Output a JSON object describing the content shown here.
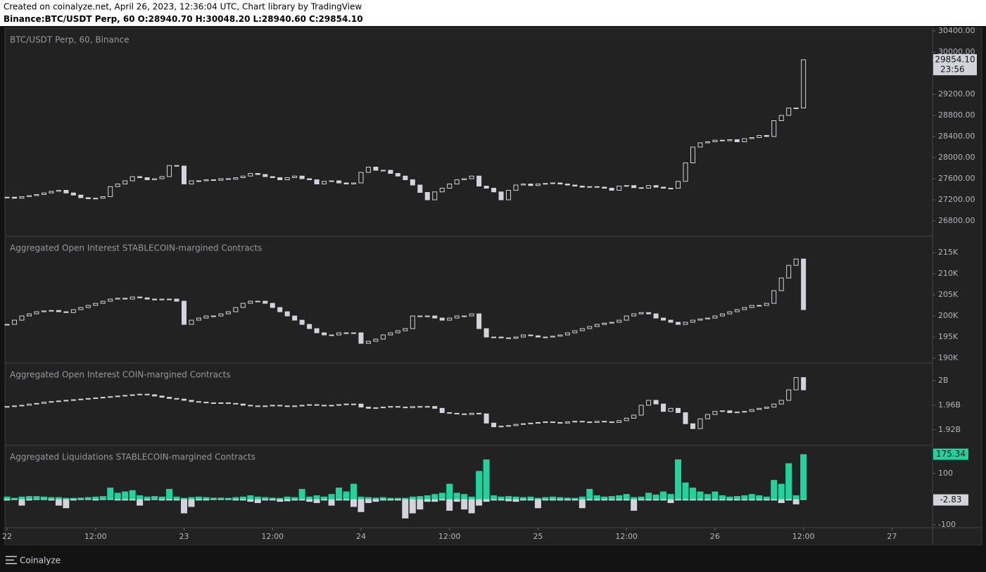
{
  "header": {
    "created": "Created on coinalyze.net, April 26, 2023, 12:36:04 UTC, Chart library by TradingView",
    "symbol": "Binance:BTC/USDT Perp, 60",
    "ohlc": [
      "O:28940.70",
      "H:30048.20",
      "L:28940.60",
      "C:29854.10"
    ]
  },
  "time_axis": {
    "xlim": [
      -0.29,
      125.5
    ],
    "xticks": [
      {
        "value": 0,
        "label": "22"
      },
      {
        "value": 12,
        "label": "12:00"
      },
      {
        "value": 24,
        "label": "23"
      },
      {
        "value": 36,
        "label": "12:00"
      },
      {
        "value": 48,
        "label": "24"
      },
      {
        "value": 60,
        "label": "12:00"
      },
      {
        "value": 72,
        "label": "25"
      },
      {
        "value": 84,
        "label": "12:00"
      },
      {
        "value": 96,
        "label": "26"
      },
      {
        "value": 108,
        "label": "12:00"
      },
      {
        "value": 120,
        "label": "27"
      }
    ]
  },
  "chart_data": [
    {
      "type": "candlestick",
      "title": "BTC/USDT Perp, 60, Binance",
      "color": "#d1d4dc",
      "closes": [
        27250,
        27230,
        27260,
        27280,
        27300,
        27330,
        27360,
        27380,
        27330,
        27290,
        27240,
        27220,
        27230,
        27260,
        27450,
        27500,
        27560,
        27640,
        27620,
        27580,
        27600,
        27640,
        27850,
        27840,
        27500,
        27560,
        27560,
        27580,
        27570,
        27600,
        27590,
        27620,
        27650,
        27700,
        27680,
        27640,
        27620,
        27580,
        27620,
        27650,
        27600,
        27580,
        27500,
        27550,
        27560,
        27520,
        27500,
        27520,
        27720,
        27820,
        27760,
        27760,
        27700,
        27650,
        27580,
        27480,
        27340,
        27200,
        27350,
        27420,
        27500,
        27580,
        27600,
        27650,
        27460,
        27420,
        27350,
        27200,
        27380,
        27480,
        27500,
        27470,
        27500,
        27510,
        27520,
        27500,
        27480,
        27460,
        27440,
        27450,
        27440,
        27420,
        27380,
        27460,
        27470,
        27430,
        27420,
        27470,
        27440,
        27420,
        27420,
        27550,
        27900,
        28200,
        28280,
        28300,
        28330,
        28320,
        28340,
        28300,
        28360,
        28380,
        28420,
        28400,
        28700,
        28800,
        28940,
        28940.6,
        29854.1
      ],
      "ylim": [
        26520,
        30440
      ],
      "yticks": [
        {
          "value": 26800,
          "label": "26800.00"
        },
        {
          "value": 27200,
          "label": "27200.00"
        },
        {
          "value": 27600,
          "label": "27600.00"
        },
        {
          "value": 28000,
          "label": "28000.00"
        },
        {
          "value": 28400,
          "label": "28400.00"
        },
        {
          "value": 28800,
          "label": "28800.00"
        },
        {
          "value": 29200,
          "label": "29200.00"
        },
        {
          "value": 30000,
          "label": "30000.00"
        },
        {
          "value": 30400,
          "label": "30400.00"
        }
      ],
      "last_price": {
        "value": 29854.1,
        "label": "29854.10"
      },
      "countdown": "23:56"
    },
    {
      "type": "candlestick",
      "title": "Aggregated Open Interest STABLECOIN-margined Contracts",
      "color": "#d1d4dc",
      "closes": [
        198000,
        199000,
        200000,
        200500,
        201000,
        201200,
        201300,
        201000,
        200800,
        201500,
        202000,
        202500,
        203000,
        203500,
        204000,
        204200,
        204000,
        204500,
        204300,
        204000,
        203800,
        204000,
        204000,
        203500,
        198000,
        199000,
        199500,
        200000,
        200000,
        200500,
        201000,
        202000,
        203000,
        203500,
        203500,
        203000,
        202000,
        201000,
        200000,
        199000,
        198000,
        197000,
        196000,
        195500,
        195500,
        196000,
        196000,
        196000,
        193500,
        194000,
        194500,
        195500,
        196000,
        196500,
        197000,
        200000,
        200000,
        200000,
        199500,
        199000,
        199500,
        200000,
        200000,
        200500,
        197000,
        195000,
        195000,
        194800,
        194700,
        195000,
        195500,
        195300,
        195000,
        195000,
        195200,
        195500,
        196000,
        196500,
        197000,
        197500,
        198000,
        198300,
        198500,
        199000,
        200000,
        200500,
        200800,
        200500,
        199500,
        199000,
        198500,
        198000,
        198500,
        199000,
        199300,
        199500,
        200000,
        200500,
        201000,
        201500,
        202000,
        202500,
        202500,
        203000,
        206000,
        209000,
        212000,
        213500,
        201500
      ],
      "ylim": [
        189000,
        218700
      ],
      "yticks": [
        {
          "value": 190000,
          "label": "190K"
        },
        {
          "value": 195000,
          "label": "195K"
        },
        {
          "value": 200000,
          "label": "200K"
        },
        {
          "value": 205000,
          "label": "205K"
        },
        {
          "value": 210000,
          "label": "210K"
        },
        {
          "value": 215000,
          "label": "215K"
        }
      ]
    },
    {
      "type": "candlestick",
      "title": "Aggregated Open Interest COIN-margined Contracts",
      "color": "#d1d4dc",
      "closes": [
        1958000000.0,
        1959000000.0,
        1960000000.0,
        1962000000.0,
        1963000000.0,
        1965000000.0,
        1966000000.0,
        1967000000.0,
        1968000000.0,
        1969000000.0,
        1970000000.0,
        1971000000.0,
        1972000000.0,
        1973000000.0,
        1974000000.0,
        1975000000.0,
        1976000000.0,
        1977000000.0,
        1978000000.0,
        1977000000.0,
        1975000000.0,
        1973000000.0,
        1971000000.0,
        1970000000.0,
        1968000000.0,
        1966000000.0,
        1965000000.0,
        1964000000.0,
        1963000000.0,
        1964000000.0,
        1963000000.0,
        1962000000.0,
        1960000000.0,
        1959000000.0,
        1958000000.0,
        1959000000.0,
        1960000000.0,
        1959000000.0,
        1958000000.0,
        1959000000.0,
        1960000000.0,
        1961000000.0,
        1960000000.0,
        1959000000.0,
        1960000000.0,
        1961000000.0,
        1962000000.0,
        1962000000.0,
        1957000000.0,
        1955000000.0,
        1956000000.0,
        1957000000.0,
        1958000000.0,
        1957000000.0,
        1956000000.0,
        1958000000.0,
        1957000000.0,
        1958000000.0,
        1955000000.0,
        1948000000.0,
        1947000000.0,
        1946000000.0,
        1945000000.0,
        1947000000.0,
        1946000000.0,
        1931000000.0,
        1925000000.0,
        1926000000.0,
        1927000000.0,
        1929000000.0,
        1930000000.0,
        1931000000.0,
        1932000000.0,
        1933000000.0,
        1932000000.0,
        1931000000.0,
        1933000000.0,
        1934000000.0,
        1933000000.0,
        1932000000.0,
        1934000000.0,
        1933000000.0,
        1932000000.0,
        1935000000.0,
        1939000000.0,
        1944000000.0,
        1960000000.0,
        1968000000.0,
        1962000000.0,
        1950000000.0,
        1955000000.0,
        1948000000.0,
        1930000000.0,
        1922000000.0,
        1938000000.0,
        1945000000.0,
        1950000000.0,
        1951000000.0,
        1948000000.0,
        1949000000.0,
        1950000000.0,
        1953000000.0,
        1955000000.0,
        1957000000.0,
        1962000000.0,
        1968000000.0,
        1985000000.0,
        2005000000.0,
        1985000000.0
      ],
      "ylim": [
        1896000000.0,
        2027400000.0
      ],
      "yticks": [
        {
          "value": 1920000000.0,
          "label": "1.92B"
        },
        {
          "value": 1960000000.0,
          "label": "1.96B"
        },
        {
          "value": 2000000000.0,
          "label": "2B"
        }
      ]
    },
    {
      "type": "bar",
      "title": "Aggregated Liquidations STABLECOIN-margined Contracts",
      "series": [
        {
          "color": "#1fd49c",
          "values": [
            10,
            5,
            10,
            12,
            12,
            10,
            8,
            8,
            5,
            5,
            6,
            8,
            10,
            12,
            45,
            25,
            30,
            35,
            15,
            10,
            12,
            10,
            40,
            10,
            5,
            8,
            10,
            8,
            6,
            6,
            5,
            8,
            10,
            15,
            10,
            8,
            6,
            5,
            10,
            8,
            40,
            10,
            15,
            10,
            20,
            45,
            30,
            60,
            10,
            8,
            6,
            8,
            5,
            5,
            5,
            10,
            12,
            15,
            20,
            25,
            60,
            25,
            20,
            10,
            110,
            155,
            15,
            10,
            12,
            10,
            8,
            10,
            5,
            8,
            10,
            8,
            6,
            5,
            10,
            40,
            15,
            10,
            12,
            15,
            20,
            8,
            10,
            25,
            18,
            30,
            20,
            155,
            65,
            45,
            30,
            20,
            30,
            15,
            10,
            12,
            15,
            20,
            15,
            10,
            75,
            60,
            140,
            15,
            175.34
          ]
        },
        {
          "color": "#d1d4dc",
          "values": [
            -5,
            -3,
            -25,
            -5,
            -3,
            -3,
            -5,
            -25,
            -35,
            -5,
            -3,
            -3,
            -5,
            -3,
            -3,
            -5,
            -5,
            -5,
            -25,
            -5,
            -3,
            -5,
            -5,
            -5,
            -55,
            -30,
            -5,
            -5,
            -3,
            -3,
            -3,
            -5,
            -5,
            -10,
            -15,
            -5,
            -5,
            -10,
            -8,
            -5,
            -5,
            -10,
            -15,
            -5,
            -25,
            -5,
            -5,
            -30,
            -50,
            -15,
            -10,
            -5,
            -5,
            -5,
            -75,
            -55,
            -40,
            -10,
            -10,
            -5,
            -45,
            -10,
            -40,
            -55,
            -25,
            -10,
            -5,
            -5,
            -8,
            -10,
            -5,
            -5,
            -35,
            -5,
            -5,
            -5,
            -5,
            -5,
            -35,
            -5,
            -5,
            -5,
            -5,
            -5,
            -5,
            -45,
            -5,
            -5,
            -5,
            -5,
            -15,
            -5,
            -5,
            -5,
            -5,
            -5,
            -5,
            -5,
            -5,
            -5,
            -5,
            -5,
            -5,
            -5,
            -5,
            -15,
            -5,
            -20,
            -2.83
          ]
        }
      ],
      "ylim": [
        -111,
        207
      ],
      "yticks": [
        -100,
        100
      ],
      "last_value_labels": [
        175.34,
        -2.83
      ]
    }
  ],
  "footer": {
    "brand": "Coinalyze"
  }
}
